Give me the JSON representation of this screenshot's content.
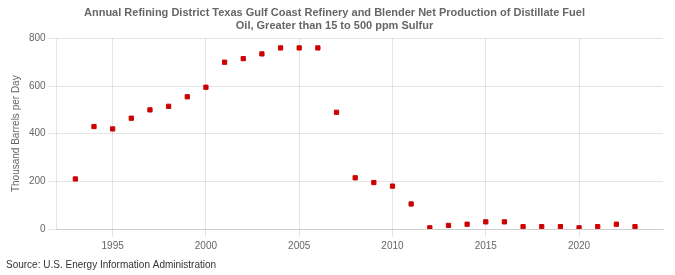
{
  "chart_data": {
    "type": "scatter",
    "title": "Annual Refining District Texas Gulf Coast Refinery and Blender Net Production of Distillate Fuel\nOil, Greater than 15 to 500 ppm Sulfur",
    "ylabel": "Thousand Barrels per Day",
    "annotations": [
      "Source: U.S. Energy Information Administration"
    ],
    "x": [
      1993,
      1994,
      1995,
      1996,
      1997,
      1998,
      1999,
      2000,
      2001,
      2002,
      2003,
      2004,
      2005,
      2006,
      2007,
      2008,
      2009,
      2010,
      2011,
      2012,
      2013,
      2014,
      2015,
      2016,
      2017,
      2018,
      2019,
      2020,
      2021,
      2022,
      2023
    ],
    "values": [
      210,
      430,
      420,
      465,
      500,
      515,
      555,
      595,
      700,
      715,
      735,
      760,
      760,
      760,
      490,
      215,
      195,
      180,
      105,
      5,
      15,
      20,
      30,
      30,
      10,
      10,
      10,
      5,
      10,
      20,
      10
    ],
    "color": "#cc0000",
    "marker": "square",
    "xlim": [
      1992,
      2024.5
    ],
    "xticks": [
      1995,
      2000,
      2005,
      2010,
      2015,
      2020
    ],
    "ylim": [
      0,
      800
    ],
    "yticks": [
      0,
      200,
      400,
      600,
      800
    ],
    "grid": true
  }
}
